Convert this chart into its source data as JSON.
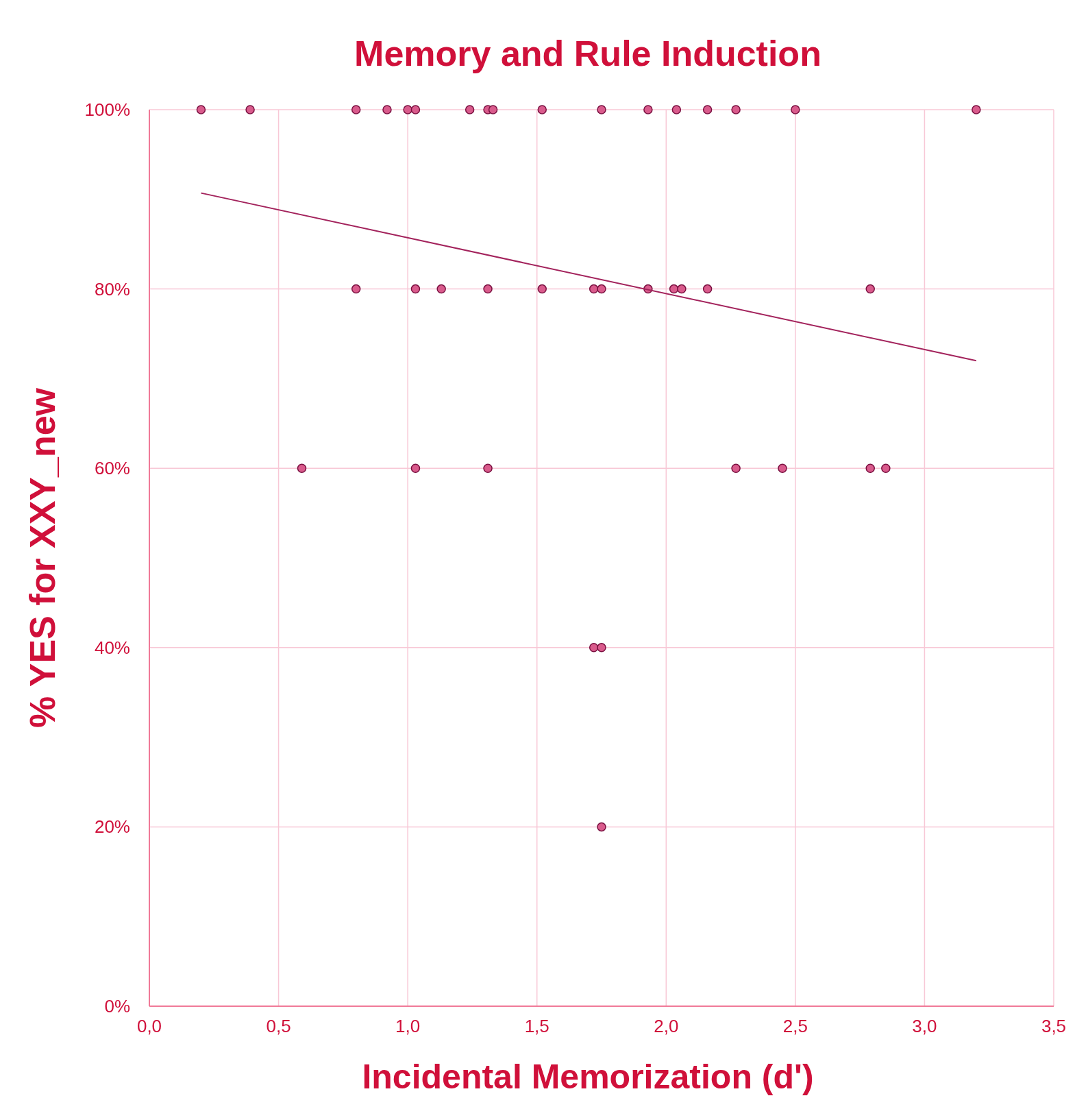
{
  "chart_data": {
    "type": "scatter",
    "title": "Memory and Rule Induction",
    "xlabel": "Incidental Memorization (d')",
    "ylabel": "% YES for XXY_new",
    "series": [
      {
        "marker": "circle",
        "color": "#d95b8c",
        "x": [
          0.2,
          0.39,
          0.8,
          0.92,
          1.0,
          1.03,
          1.24,
          1.31,
          1.33,
          1.52,
          1.75,
          1.93,
          2.04,
          2.16,
          2.27,
          2.5,
          3.2,
          0.8,
          1.03,
          1.13,
          1.31,
          1.52,
          1.72,
          1.75,
          1.93,
          2.03,
          2.06,
          2.16,
          2.79,
          0.59,
          1.03,
          1.31,
          2.27,
          2.45,
          2.79,
          2.85,
          1.72,
          1.75,
          1.75
        ],
        "values": [
          100,
          100,
          100,
          100,
          100,
          100,
          100,
          100,
          100,
          100,
          100,
          100,
          100,
          100,
          100,
          100,
          100,
          80,
          80,
          80,
          80,
          80,
          80,
          80,
          80,
          80,
          80,
          80,
          80,
          60,
          60,
          60,
          60,
          60,
          60,
          60,
          40,
          40,
          20
        ]
      },
      {
        "type": "line",
        "color": "#a3235c",
        "x": [
          0.2,
          3.2
        ],
        "values": [
          90.7,
          72.0
        ]
      }
    ],
    "xlim": [
      0,
      3.5
    ],
    "ylim": [
      0,
      100
    ],
    "xticks": [
      {
        "value": 0,
        "label": "0,0"
      },
      {
        "value": 0.5,
        "label": "0,5"
      },
      {
        "value": 1,
        "label": "1,0"
      },
      {
        "value": 1.5,
        "label": "1,5"
      },
      {
        "value": 2,
        "label": "2,0"
      },
      {
        "value": 2.5,
        "label": "2,5"
      },
      {
        "value": 3,
        "label": "3,0"
      },
      {
        "value": 3.5,
        "label": "3,5"
      }
    ],
    "yticks": [
      {
        "value": 0,
        "label": "0%"
      },
      {
        "value": 20,
        "label": "20%"
      },
      {
        "value": 40,
        "label": "40%"
      },
      {
        "value": 60,
        "label": "60%"
      },
      {
        "value": 80,
        "label": "80%"
      },
      {
        "value": 100,
        "label": "100%"
      }
    ],
    "grid": true
  }
}
